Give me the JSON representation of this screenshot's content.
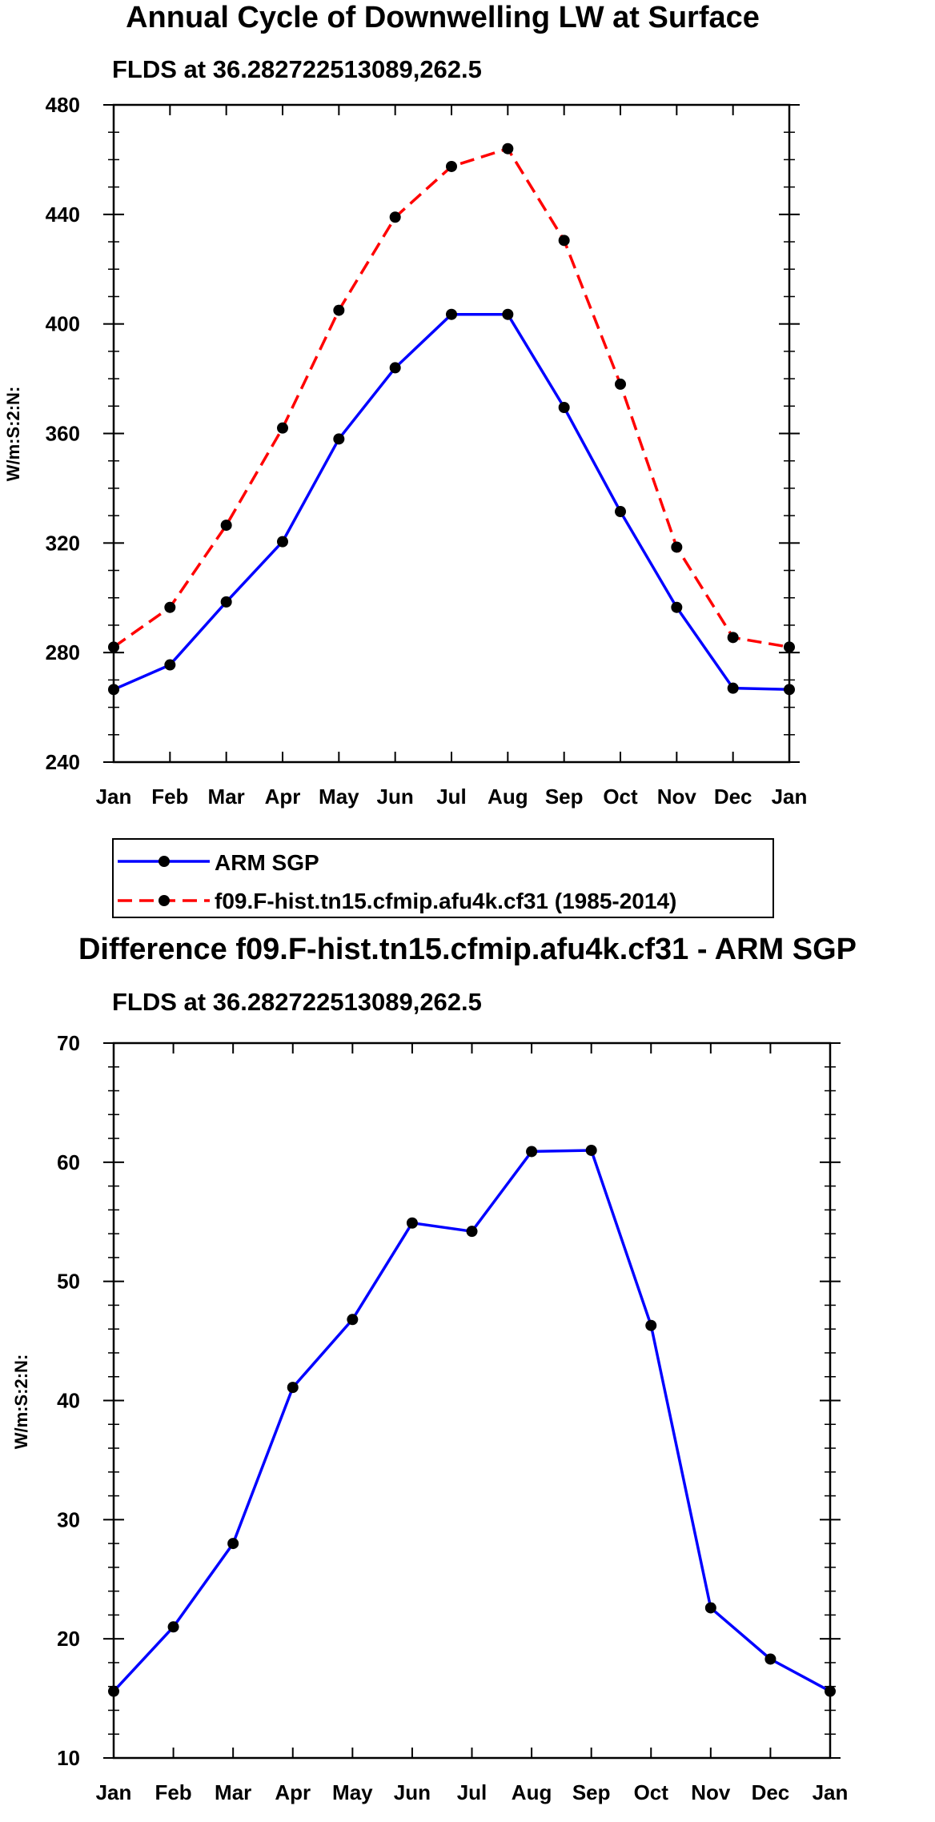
{
  "chart_data": [
    {
      "type": "line",
      "title": "Annual Cycle of Downwelling LW at Surface",
      "subtitle": "FLDS at 36.282722513089,262.5",
      "xlabel": "",
      "ylabel": "W/m:S:2:N:",
      "categories": [
        "Jan",
        "Feb",
        "Mar",
        "Apr",
        "May",
        "Jun",
        "Jul",
        "Aug",
        "Sep",
        "Oct",
        "Nov",
        "Dec",
        "Jan"
      ],
      "ylim": [
        240,
        480
      ],
      "yticks": [
        240,
        280,
        320,
        360,
        400,
        440,
        480
      ],
      "ytick_labels": [
        "240",
        "280",
        "320",
        "360",
        "400",
        "440",
        "480"
      ],
      "series": [
        {
          "name": "ARM SGP",
          "color": "#0000ff",
          "style": "solid",
          "values": [
            266.5,
            275.5,
            298.5,
            320.5,
            358,
            384,
            403.5,
            403.5,
            369.5,
            331.5,
            296.5,
            267,
            266.5
          ]
        },
        {
          "name": "f09.F-hist.tn15.cfmip.afu4k.cf31 (1985-2014)",
          "color": "#ff0000",
          "style": "dashed",
          "values": [
            282,
            296.5,
            326.5,
            362,
            405,
            439,
            457.5,
            464,
            430.5,
            378,
            318.5,
            285.5,
            282
          ]
        }
      ],
      "legend": {
        "placement": "bottom",
        "entries": [
          "ARM SGP",
          "f09.F-hist.tn15.cfmip.afu4k.cf31 (1985-2014)"
        ]
      }
    },
    {
      "type": "line",
      "title": "Difference f09.F-hist.tn15.cfmip.afu4k.cf31 - ARM SGP",
      "subtitle": "FLDS at 36.282722513089,262.5",
      "xlabel": "",
      "ylabel": "W/m:S:2:N:",
      "categories": [
        "Jan",
        "Feb",
        "Mar",
        "Apr",
        "May",
        "Jun",
        "Jul",
        "Aug",
        "Sep",
        "Oct",
        "Nov",
        "Dec",
        "Jan"
      ],
      "ylim": [
        10,
        70
      ],
      "yticks": [
        10,
        20,
        30,
        40,
        50,
        60,
        70
      ],
      "ytick_labels": [
        "10",
        "20",
        "30",
        "40",
        "50",
        "60",
        "70"
      ],
      "series": [
        {
          "name": "Difference",
          "color": "#0000ff",
          "style": "solid",
          "values": [
            15.6,
            21,
            28,
            41.1,
            46.8,
            54.9,
            54.2,
            60.9,
            61,
            46.3,
            22.6,
            18.3,
            15.6
          ]
        }
      ]
    }
  ]
}
